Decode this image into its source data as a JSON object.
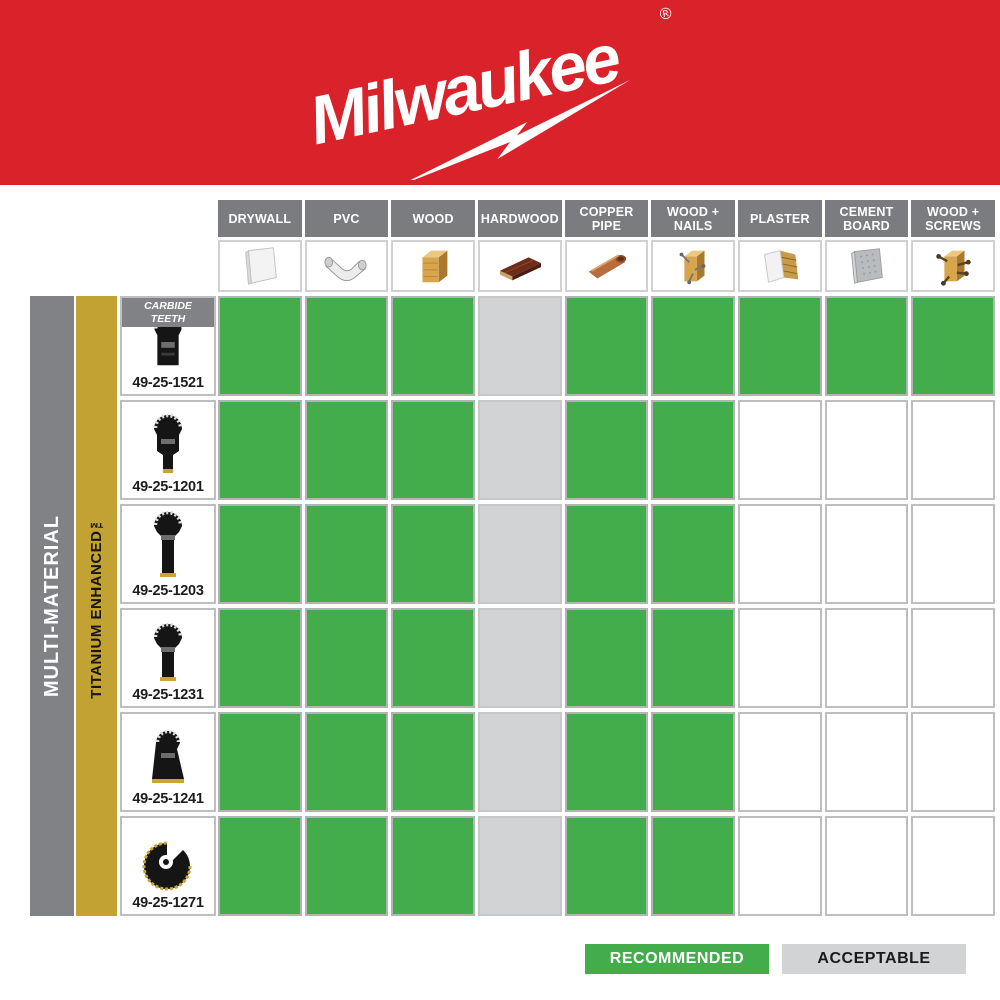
{
  "brand": {
    "name": "Milwaukee",
    "registered": "®"
  },
  "colors": {
    "banner_red": "#D9222A",
    "recommended_green": "#43AC4B",
    "acceptable_gray": "#D2D3D5",
    "header_gray": "#7A7C7F",
    "side_bar_gray": "#808285",
    "side_bar_gold": "#C2A233"
  },
  "side_labels": {
    "outer": "MULTI-MATERIAL",
    "inner": "TITANIUM ENHANCED™"
  },
  "table": {
    "columns": [
      {
        "label": "DRYWALL",
        "icon": "drywall-icon"
      },
      {
        "label": "PVC",
        "icon": "pvc-icon"
      },
      {
        "label": "WOOD",
        "icon": "wood-icon"
      },
      {
        "label": "HARDWOOD",
        "icon": "hardwood-icon"
      },
      {
        "label": "COPPER PIPE",
        "icon": "copper-pipe-icon"
      },
      {
        "label": "WOOD + NAILS",
        "icon": "wood-nails-icon"
      },
      {
        "label": "PLASTER",
        "icon": "plaster-icon"
      },
      {
        "label": "CEMENT BOARD",
        "icon": "cement-board-icon"
      },
      {
        "label": "WOOD + SCREWS",
        "icon": "wood-screws-icon"
      }
    ],
    "rows": [
      {
        "model": "49-25-1521",
        "badge": "CARBIDE TEETH",
        "blade": "blade-1521",
        "cells": [
          "recommended",
          "recommended",
          "recommended",
          "acceptable",
          "recommended",
          "recommended",
          "recommended",
          "recommended",
          "recommended"
        ]
      },
      {
        "model": "49-25-1201",
        "badge": null,
        "blade": "blade-1201",
        "cells": [
          "recommended",
          "recommended",
          "recommended",
          "acceptable",
          "recommended",
          "recommended",
          "none",
          "none",
          "none"
        ]
      },
      {
        "model": "49-25-1203",
        "badge": null,
        "blade": "blade-1203",
        "cells": [
          "recommended",
          "recommended",
          "recommended",
          "acceptable",
          "recommended",
          "recommended",
          "none",
          "none",
          "none"
        ]
      },
      {
        "model": "49-25-1231",
        "badge": null,
        "blade": "blade-1231",
        "cells": [
          "recommended",
          "recommended",
          "recommended",
          "acceptable",
          "recommended",
          "recommended",
          "none",
          "none",
          "none"
        ]
      },
      {
        "model": "49-25-1241",
        "badge": null,
        "blade": "blade-1241",
        "cells": [
          "recommended",
          "recommended",
          "recommended",
          "acceptable",
          "recommended",
          "recommended",
          "none",
          "none",
          "none"
        ]
      },
      {
        "model": "49-25-1271",
        "badge": null,
        "blade": "blade-1271",
        "cells": [
          "recommended",
          "recommended",
          "recommended",
          "acceptable",
          "recommended",
          "recommended",
          "none",
          "none",
          "none"
        ]
      }
    ]
  },
  "legend": [
    {
      "id": "recommended",
      "label": "RECOMMENDED"
    },
    {
      "id": "acceptable",
      "label": "ACCEPTABLE"
    }
  ],
  "chart_data": {
    "type": "table",
    "columns": [
      "DRYWALL",
      "PVC",
      "WOOD",
      "HARDWOOD",
      "COPPER PIPE",
      "WOOD + NAILS",
      "PLASTER",
      "CEMENT BOARD",
      "WOOD + SCREWS"
    ],
    "rows": [
      "49-25-1521",
      "49-25-1201",
      "49-25-1203",
      "49-25-1231",
      "49-25-1241",
      "49-25-1271"
    ],
    "row_group_labels": [
      "MULTI-MATERIAL",
      "TITANIUM ENHANCED™"
    ],
    "row_annotations": {
      "49-25-1521": "CARBIDE TEETH"
    },
    "values": [
      [
        "recommended",
        "recommended",
        "recommended",
        "acceptable",
        "recommended",
        "recommended",
        "recommended",
        "recommended",
        "recommended"
      ],
      [
        "recommended",
        "recommended",
        "recommended",
        "acceptable",
        "recommended",
        "recommended",
        null,
        null,
        null
      ],
      [
        "recommended",
        "recommended",
        "recommended",
        "acceptable",
        "recommended",
        "recommended",
        null,
        null,
        null
      ],
      [
        "recommended",
        "recommended",
        "recommended",
        "acceptable",
        "recommended",
        "recommended",
        null,
        null,
        null
      ],
      [
        "recommended",
        "recommended",
        "recommended",
        "acceptable",
        "recommended",
        "recommended",
        null,
        null,
        null
      ],
      [
        "recommended",
        "recommended",
        "recommended",
        "acceptable",
        "recommended",
        "recommended",
        null,
        null,
        null
      ]
    ],
    "legend": {
      "recommended": "#43AC4B",
      "acceptable": "#D2D3D5"
    },
    "legend_position": "bottom-right"
  }
}
